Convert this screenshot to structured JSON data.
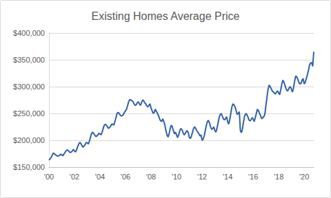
{
  "chart_data": {
    "type": "line",
    "title": "Existing Homes Average Price",
    "color": "#3060a8",
    "grid": true,
    "ylim": [
      150000,
      400000
    ],
    "yticks": [
      {
        "value": 150000,
        "label": "$150,000"
      },
      {
        "value": 200000,
        "label": "$200,000"
      },
      {
        "value": 250000,
        "label": "$250,000"
      },
      {
        "value": 300000,
        "label": "$300,000"
      },
      {
        "value": 350000,
        "label": "$350,000"
      },
      {
        "value": 400000,
        "label": "$400,000"
      }
    ],
    "categories": [
      "'00",
      null,
      null,
      null,
      null,
      null,
      null,
      null,
      null,
      null,
      null,
      null,
      null,
      null,
      null,
      null,
      null,
      null,
      null,
      null,
      null,
      null,
      null,
      null,
      "'02",
      null,
      null,
      null,
      null,
      null,
      null,
      null,
      null,
      null,
      null,
      null,
      null,
      null,
      null,
      null,
      null,
      null,
      null,
      null,
      null,
      null,
      null,
      null,
      "'04",
      null,
      null,
      null,
      null,
      null,
      null,
      null,
      null,
      null,
      null,
      null,
      null,
      null,
      null,
      null,
      null,
      null,
      null,
      null,
      null,
      null,
      null,
      null,
      "'06",
      null,
      null,
      null,
      null,
      null,
      null,
      null,
      null,
      null,
      null,
      null,
      null,
      null,
      null,
      null,
      null,
      null,
      null,
      null,
      null,
      null,
      null,
      null,
      "'08",
      null,
      null,
      null,
      null,
      null,
      null,
      null,
      null,
      null,
      null,
      null,
      null,
      null,
      null,
      null,
      null,
      null,
      null,
      null,
      null,
      null,
      null,
      null,
      "'10",
      null,
      null,
      null,
      null,
      null,
      null,
      null,
      null,
      null,
      null,
      null,
      null,
      null,
      null,
      null,
      null,
      null,
      null,
      null,
      null,
      null,
      null,
      null,
      "'12",
      null,
      null,
      null,
      null,
      null,
      null,
      null,
      null,
      null,
      null,
      null,
      null,
      null,
      null,
      null,
      null,
      null,
      null,
      null,
      null,
      null,
      null,
      null,
      "'14",
      null,
      null,
      null,
      null,
      null,
      null,
      null,
      null,
      null,
      null,
      null,
      null,
      null,
      null,
      null,
      null,
      null,
      null,
      null,
      null,
      null,
      null,
      null,
      "'16",
      null,
      null,
      null,
      null,
      null,
      null,
      null,
      null,
      null,
      null,
      null,
      null,
      null,
      null,
      null,
      null,
      null,
      null,
      null,
      null,
      null,
      null,
      null,
      "'18",
      null,
      null,
      null,
      null,
      null,
      null,
      null,
      null,
      null,
      null,
      null,
      null,
      null,
      null,
      null,
      null,
      null,
      null,
      null,
      null,
      null,
      null,
      null,
      "'20",
      null,
      null,
      null,
      null,
      null,
      null,
      null,
      null,
      null
    ],
    "values": [
      163000,
      165000,
      168000,
      172000,
      176000,
      175000,
      173000,
      172000,
      170000,
      171000,
      172000,
      174000,
      173000,
      171000,
      174000,
      177000,
      180000,
      182000,
      181000,
      179000,
      177000,
      178000,
      180000,
      183000,
      180000,
      178000,
      182000,
      188000,
      193000,
      196000,
      194000,
      190000,
      187000,
      189000,
      192000,
      196000,
      195000,
      193000,
      198000,
      205000,
      212000,
      215000,
      213000,
      210000,
      207000,
      208000,
      210000,
      213000,
      212000,
      210000,
      215000,
      222000,
      228000,
      230000,
      228000,
      225000,
      222000,
      224000,
      226000,
      230000,
      230000,
      228000,
      235000,
      242000,
      250000,
      252000,
      250000,
      247000,
      245000,
      246000,
      248000,
      252000,
      255000,
      258000,
      265000,
      272000,
      276000,
      275000,
      274000,
      272000,
      268000,
      265000,
      266000,
      270000,
      272000,
      268000,
      265000,
      270000,
      275000,
      274000,
      270000,
      268000,
      264000,
      262000,
      265000,
      268000,
      260000,
      255000,
      250000,
      252000,
      258000,
      254000,
      250000,
      246000,
      240000,
      236000,
      235000,
      240000,
      235000,
      228000,
      218000,
      210000,
      206000,
      212000,
      222000,
      228000,
      225000,
      218000,
      212000,
      215000,
      210000,
      205000,
      210000,
      218000,
      222000,
      220000,
      215000,
      210000,
      212000,
      216000,
      218000,
      214000,
      205000,
      203000,
      208000,
      215000,
      222000,
      225000,
      222000,
      218000,
      215000,
      212000,
      208000,
      210000,
      200000,
      202000,
      208000,
      218000,
      228000,
      235000,
      237000,
      232000,
      225000,
      220000,
      222000,
      225000,
      218000,
      215000,
      222000,
      232000,
      242000,
      248000,
      250000,
      245000,
      240000,
      238000,
      240000,
      244000,
      235000,
      230000,
      238000,
      250000,
      262000,
      268000,
      266000,
      262000,
      255000,
      248000,
      250000,
      253000,
      218000,
      214000,
      222000,
      235000,
      245000,
      250000,
      248000,
      244000,
      238000,
      236000,
      238000,
      242000,
      240000,
      235000,
      242000,
      250000,
      258000,
      255000,
      250000,
      246000,
      240000,
      242000,
      244000,
      248000,
      265000,
      280000,
      295000,
      303000,
      300000,
      296000,
      292000,
      290000,
      288000,
      286000,
      290000,
      292000,
      288000,
      285000,
      295000,
      305000,
      312000,
      308000,
      302000,
      296000,
      292000,
      294000,
      298000,
      300000,
      295000,
      290000,
      298000,
      310000,
      320000,
      318000,
      314000,
      308000,
      305000,
      306000,
      312000,
      315000,
      305000,
      308000,
      315000,
      322000,
      330000,
      340000,
      344000,
      345000,
      338000,
      365000
    ]
  }
}
